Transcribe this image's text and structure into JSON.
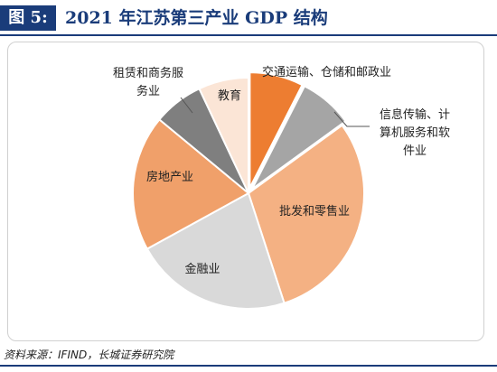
{
  "header": {
    "label": "图 5:",
    "title": "2021 年江苏第三产业 GDP 结构"
  },
  "chart_data": {
    "type": "pie",
    "title": "2021 年江苏第三产业 GDP 结构",
    "slices": [
      {
        "label": "交通运输、仓储和邮政业",
        "value": 7.5,
        "color": "#ed7d31"
      },
      {
        "label": "信息传输、计算机服务和软件业",
        "value": 7.5,
        "color": "#a5a5a5"
      },
      {
        "label": "批发和零售业",
        "value": 30,
        "color": "#f4b183"
      },
      {
        "label": "金融业",
        "value": 22,
        "color": "#d9d9d9"
      },
      {
        "label": "房地产业",
        "value": 19,
        "color": "#f0a06a"
      },
      {
        "label": "租赁和商务服务业",
        "value": 7,
        "color": "#7f7f7f"
      },
      {
        "label": "教育",
        "value": 7,
        "color": "#fbe5d6"
      }
    ]
  },
  "footer": {
    "source": "资料来源：IFIND，长城证券研究院"
  }
}
